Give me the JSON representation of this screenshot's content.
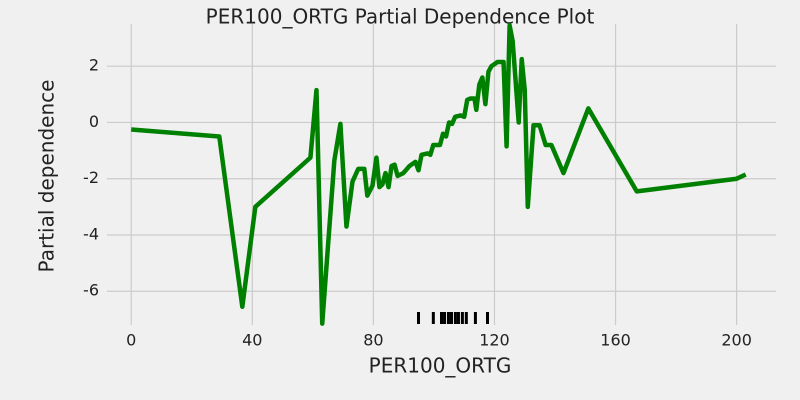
{
  "chart_data": {
    "type": "line",
    "title": "PER100_ORTG Partial Dependence Plot",
    "x_label": "PER100_ORTG",
    "y_label": "Partial dependence",
    "x": [
      0,
      29.1,
      36.7,
      41,
      59.2,
      61.2,
      63.1,
      67.1,
      69.1,
      71.1,
      73.1,
      75,
      77,
      78,
      79.7,
      81,
      82,
      83,
      84,
      85,
      86,
      87,
      88,
      89.9,
      91.9,
      93.9,
      94.9,
      95.9,
      97.9,
      98.8,
      99.8,
      102,
      103,
      104,
      105,
      106,
      107,
      108.8,
      110,
      111,
      112,
      113.4,
      114,
      115,
      116,
      117,
      118,
      119,
      121,
      123,
      124,
      125,
      126,
      128,
      129,
      130,
      131,
      132.9,
      134.9,
      136.9,
      138.8,
      142.8,
      151,
      167,
      200,
      203
    ],
    "series": [
      {
        "name": "Partial dependence",
        "color": "#008000",
        "values": [
          -0.25,
          -0.5,
          -6.55,
          -3.0,
          -1.25,
          1.15,
          -7.15,
          -1.35,
          -0.05,
          -3.7,
          -2.1,
          -1.65,
          -1.65,
          -2.6,
          -2.25,
          -1.25,
          -2.3,
          -2.2,
          -1.8,
          -2.3,
          -1.55,
          -1.5,
          -1.9,
          -1.8,
          -1.55,
          -1.4,
          -1.7,
          -1.15,
          -1.1,
          -1.15,
          -0.8,
          -0.8,
          -0.4,
          -0.5,
          0,
          -0.05,
          0.2,
          0.25,
          0.2,
          0.8,
          0.85,
          0.85,
          0.45,
          1.35,
          1.6,
          0.65,
          1.8,
          2.0,
          2.15,
          2.15,
          -0.85,
          3.45,
          2.9,
          0,
          2.25,
          1.15,
          -3.0,
          -0.1,
          -0.1,
          -0.8,
          -0.8,
          -1.8,
          0.5,
          -2.45,
          -2.0,
          -1.85
        ]
      }
    ],
    "deciles": [
      94.9,
      99.8,
      102.5,
      103.5,
      104.8,
      105.8,
      107.1,
      108.1,
      109.4,
      110.7,
      113.7,
      117.7
    ],
    "xlim": [
      -8,
      213
    ],
    "ylim": [
      -7.2,
      3.5
    ],
    "xticks": [
      0,
      40,
      80,
      120,
      160,
      200
    ],
    "yticks": [
      -6,
      -4,
      -2,
      0,
      2
    ],
    "grid": true
  }
}
